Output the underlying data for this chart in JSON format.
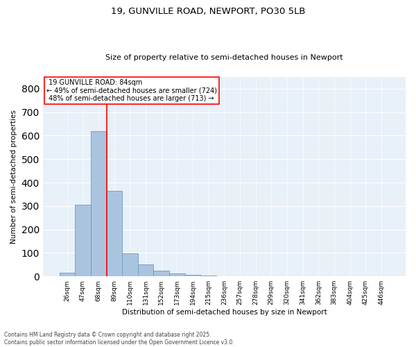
{
  "title_line1": "19, GUNVILLE ROAD, NEWPORT, PO30 5LB",
  "title_line2": "Size of property relative to semi-detached houses in Newport",
  "xlabel": "Distribution of semi-detached houses by size in Newport",
  "ylabel": "Number of semi-detached properties",
  "categories": [
    "26sqm",
    "47sqm",
    "68sqm",
    "89sqm",
    "110sqm",
    "131sqm",
    "152sqm",
    "173sqm",
    "194sqm",
    "215sqm",
    "236sqm",
    "257sqm",
    "278sqm",
    "299sqm",
    "320sqm",
    "341sqm",
    "362sqm",
    "383sqm",
    "404sqm",
    "425sqm",
    "446sqm"
  ],
  "values": [
    15,
    305,
    620,
    365,
    98,
    52,
    25,
    12,
    8,
    3,
    1,
    0,
    0,
    0,
    0,
    0,
    0,
    0,
    0,
    0,
    0
  ],
  "bar_color": "#aac4e0",
  "bar_edge_color": "#6a9bbf",
  "vline_x": 2.5,
  "vline_color": "red",
  "property_label": "19 GUNVILLE ROAD: 84sqm",
  "pct_smaller": 49,
  "n_smaller": 724,
  "pct_larger": 48,
  "n_larger": 713,
  "ylim": [
    0,
    850
  ],
  "yticks": [
    0,
    100,
    200,
    300,
    400,
    500,
    600,
    700,
    800
  ],
  "background_color": "#e8f0f8",
  "grid_color": "white",
  "footnote1": "Contains HM Land Registry data © Crown copyright and database right 2025.",
  "footnote2": "Contains public sector information licensed under the Open Government Licence v3.0."
}
